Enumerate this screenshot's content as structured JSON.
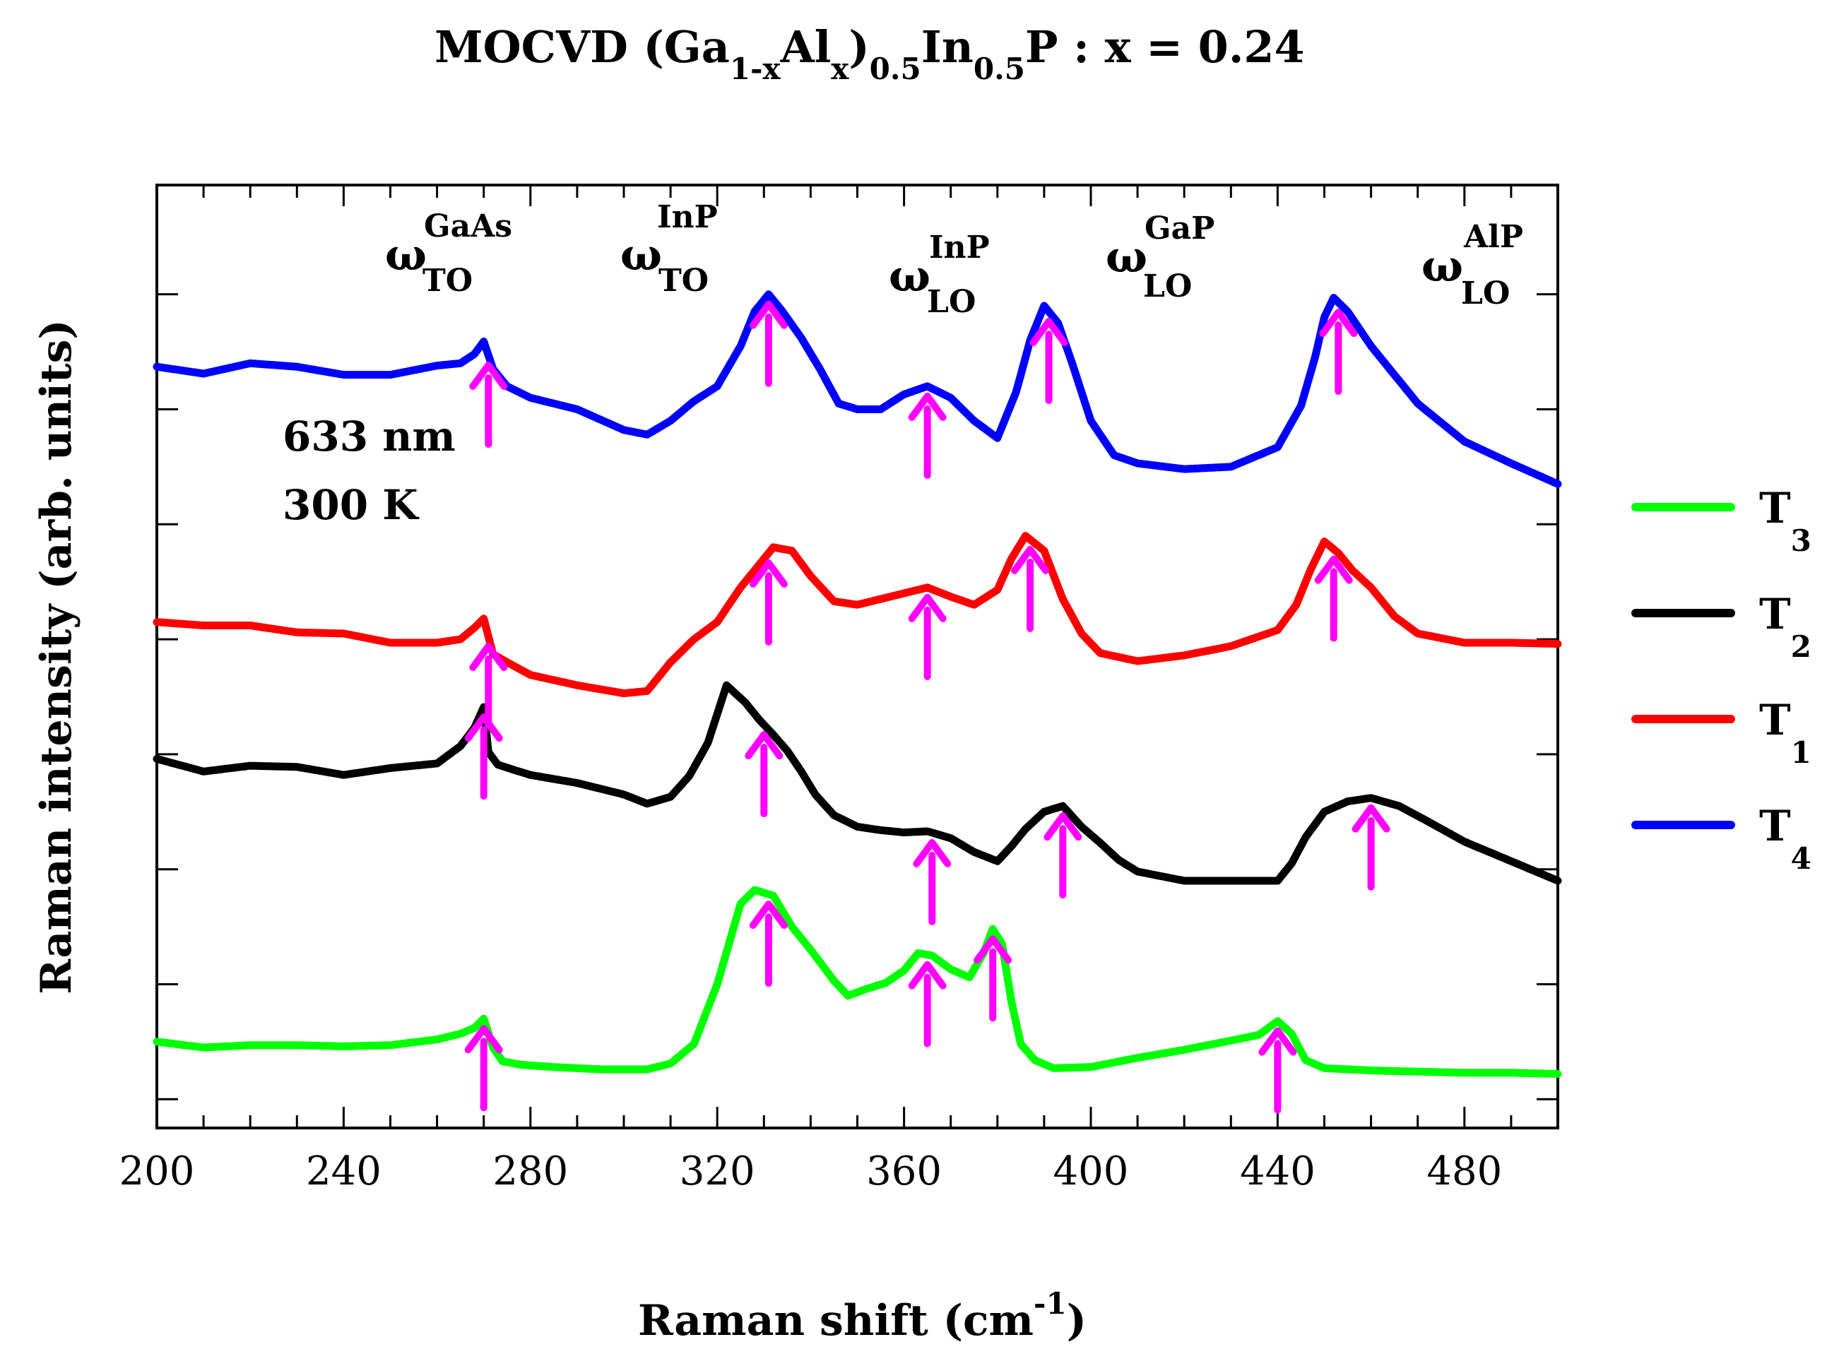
{
  "chart_data": {
    "type": "line",
    "title": {
      "prefix": "MOCVD (Ga",
      "sub1": "1-x",
      "mid1": "Al",
      "sub2": "x",
      "mid2": ")",
      "sub3": "0.5",
      "mid3": "In",
      "sub4": "0.5",
      "suffix": "P : x = 0.24"
    },
    "xlabel": {
      "text": "Raman shift (cm",
      "sup": "-1",
      "close": ")"
    },
    "ylabel": "Raman intensity (arb. units)",
    "xlim": [
      200,
      500
    ],
    "ylim": [
      0,
      8.2
    ],
    "x_ticks": [
      200,
      240,
      280,
      320,
      360,
      400,
      440,
      480
    ],
    "x_tick_labels": [
      "200",
      "240",
      "280",
      "320",
      "360",
      "400",
      "440",
      "480"
    ],
    "y_major_ticks": [
      0.25,
      1.25,
      2.25,
      3.25,
      4.25,
      5.25,
      6.25,
      7.25
    ],
    "grid": false,
    "annotations": [
      "633 nm",
      "300 K"
    ],
    "peak_labels": [
      {
        "symbol": "ω",
        "sub": "TO",
        "sup": "GaAs"
      },
      {
        "symbol": "ω",
        "sub": "TO",
        "sup": "InP"
      },
      {
        "symbol": "ω",
        "sub": "LO",
        "sup": "InP"
      },
      {
        "symbol": "ω",
        "sub": "LO",
        "sup": "GaP"
      },
      {
        "symbol": "ω",
        "sub": "LO",
        "sup": "AlP"
      }
    ],
    "legend": {
      "position": "right",
      "entries": [
        {
          "label": "T",
          "sub": "3",
          "color": "#00ff00"
        },
        {
          "label": "T",
          "sub": "2",
          "color": "#000000"
        },
        {
          "label": "T",
          "sub": "1",
          "color": "#ff0000"
        },
        {
          "label": "T",
          "sub": "4",
          "color": "#0000ff"
        }
      ]
    },
    "arrow_color": "#ff00ff",
    "series": [
      {
        "name": "T3",
        "color": "#00ff00",
        "x": [
          200,
          210,
          220,
          230,
          240,
          250,
          260,
          265,
          268,
          270,
          272,
          274,
          278,
          285,
          295,
          305,
          310,
          315,
          320,
          325,
          328,
          332,
          336,
          340,
          345,
          348,
          352,
          356,
          360,
          363,
          366,
          370,
          374,
          377,
          379,
          381,
          383,
          385,
          388,
          392,
          400,
          410,
          420,
          430,
          436,
          440,
          443,
          446,
          450,
          460,
          470,
          480,
          490,
          500
        ],
        "y": [
          0.75,
          0.7,
          0.72,
          0.72,
          0.71,
          0.72,
          0.77,
          0.82,
          0.87,
          0.95,
          0.7,
          0.58,
          0.55,
          0.53,
          0.51,
          0.51,
          0.56,
          0.73,
          1.25,
          1.95,
          2.07,
          2.02,
          1.75,
          1.55,
          1.28,
          1.15,
          1.21,
          1.26,
          1.37,
          1.52,
          1.5,
          1.38,
          1.31,
          1.52,
          1.73,
          1.6,
          1.1,
          0.73,
          0.59,
          0.52,
          0.53,
          0.61,
          0.68,
          0.76,
          0.81,
          0.93,
          0.82,
          0.59,
          0.52,
          0.5,
          0.49,
          0.48,
          0.48,
          0.47
        ]
      },
      {
        "name": "T2",
        "color": "#000000",
        "x": [
          200,
          210,
          220,
          230,
          240,
          250,
          260,
          265,
          268,
          270,
          271,
          273,
          276,
          280,
          290,
          300,
          305,
          310,
          314,
          318,
          322,
          326,
          329,
          332,
          335,
          338,
          341,
          345,
          350,
          355,
          360,
          365,
          370,
          375,
          380,
          383,
          386,
          390,
          394,
          398,
          402,
          406,
          410,
          420,
          430,
          440,
          443,
          446,
          450,
          455,
          460,
          466,
          472,
          480,
          490,
          500
        ],
        "y": [
          3.21,
          3.1,
          3.15,
          3.14,
          3.07,
          3.13,
          3.17,
          3.32,
          3.48,
          3.66,
          3.27,
          3.16,
          3.12,
          3.07,
          3.0,
          2.9,
          2.82,
          2.88,
          3.06,
          3.35,
          3.85,
          3.7,
          3.55,
          3.42,
          3.28,
          3.1,
          2.9,
          2.72,
          2.62,
          2.59,
          2.57,
          2.58,
          2.52,
          2.4,
          2.32,
          2.45,
          2.6,
          2.75,
          2.8,
          2.62,
          2.48,
          2.33,
          2.23,
          2.15,
          2.15,
          2.15,
          2.3,
          2.53,
          2.75,
          2.84,
          2.87,
          2.8,
          2.67,
          2.49,
          2.32,
          2.15
        ]
      },
      {
        "name": "T1",
        "color": "#ff0000",
        "x": [
          200,
          210,
          220,
          230,
          240,
          250,
          260,
          265,
          268,
          270,
          272,
          275,
          280,
          290,
          300,
          305,
          310,
          315,
          320,
          325,
          328,
          332,
          336,
          340,
          345,
          350,
          355,
          360,
          365,
          370,
          375,
          380,
          383,
          386,
          390,
          394,
          398,
          402,
          410,
          420,
          430,
          440,
          444,
          447,
          450,
          453,
          456,
          460,
          465,
          470,
          480,
          490,
          500
        ],
        "y": [
          4.4,
          4.37,
          4.37,
          4.31,
          4.3,
          4.22,
          4.22,
          4.25,
          4.35,
          4.43,
          4.12,
          4.05,
          3.94,
          3.85,
          3.78,
          3.8,
          4.05,
          4.25,
          4.4,
          4.7,
          4.85,
          5.05,
          5.02,
          4.8,
          4.58,
          4.55,
          4.6,
          4.65,
          4.7,
          4.62,
          4.55,
          4.68,
          4.95,
          5.15,
          5.02,
          4.6,
          4.3,
          4.13,
          4.06,
          4.11,
          4.19,
          4.33,
          4.55,
          4.85,
          5.1,
          5.0,
          4.85,
          4.7,
          4.45,
          4.3,
          4.22,
          4.22,
          4.21
        ]
      },
      {
        "name": "T4",
        "color": "#0000ff",
        "x": [
          200,
          210,
          220,
          230,
          240,
          250,
          260,
          265,
          268,
          270,
          272,
          275,
          280,
          290,
          300,
          305,
          310,
          315,
          320,
          325,
          328,
          331,
          334,
          338,
          342,
          346,
          350,
          355,
          360,
          365,
          370,
          375,
          380,
          384,
          387,
          390,
          393,
          396,
          400,
          405,
          410,
          420,
          430,
          440,
          445,
          448,
          450,
          452,
          455,
          460,
          470,
          480,
          490,
          500
        ],
        "y": [
          6.62,
          6.56,
          6.65,
          6.62,
          6.55,
          6.55,
          6.63,
          6.65,
          6.73,
          6.84,
          6.6,
          6.45,
          6.35,
          6.25,
          6.07,
          6.03,
          6.15,
          6.32,
          6.45,
          6.8,
          7.1,
          7.25,
          7.1,
          6.87,
          6.6,
          6.3,
          6.25,
          6.25,
          6.38,
          6.45,
          6.35,
          6.15,
          6.0,
          6.4,
          6.85,
          7.15,
          7.0,
          6.65,
          6.15,
          5.85,
          5.78,
          5.73,
          5.75,
          5.92,
          6.28,
          6.7,
          7.05,
          7.22,
          7.1,
          6.8,
          6.3,
          5.97,
          5.78,
          5.6
        ]
      }
    ],
    "arrows": [
      {
        "series": "T3",
        "x": [
          270,
          331,
          365,
          379,
          440
        ]
      },
      {
        "series": "T2",
        "x": [
          270,
          330,
          366,
          394,
          460
        ]
      },
      {
        "series": "T1",
        "x": [
          271,
          331,
          365,
          387,
          452
        ]
      },
      {
        "series": "T4",
        "x": [
          271,
          331,
          365,
          391,
          453
        ]
      }
    ]
  }
}
